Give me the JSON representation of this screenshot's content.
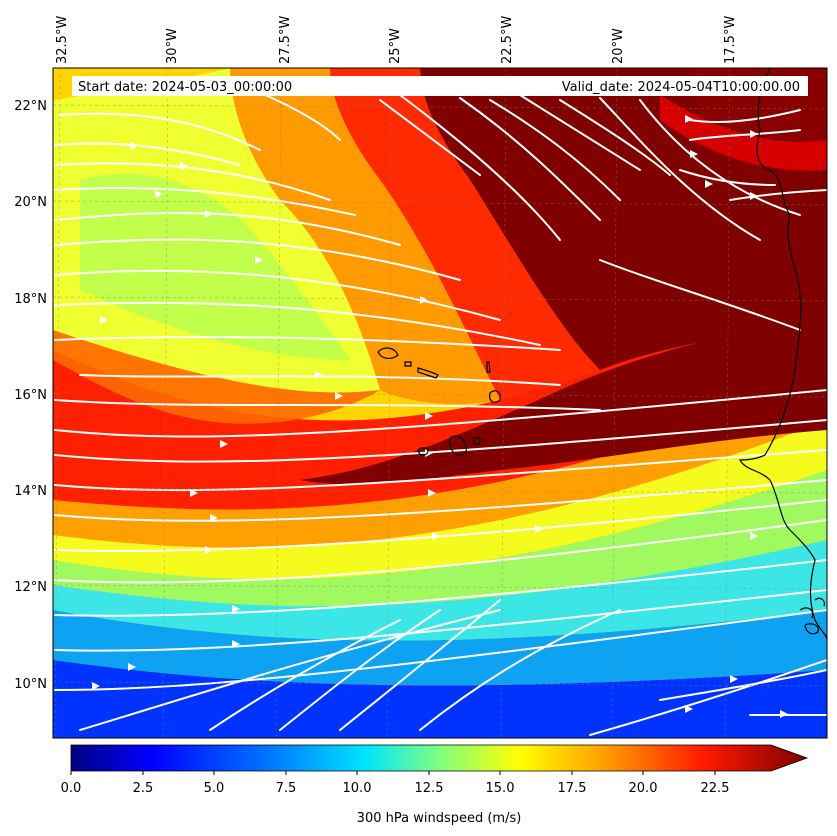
{
  "header": {
    "start_date": "Start date: 2024-05-03_00:00:00",
    "valid_date": "Valid_date: 2024-05-04T10:00:00.00"
  },
  "axes": {
    "lon_labels": [
      "32.5°W",
      "30°W",
      "27.5°W",
      "25°W",
      "22.5°W",
      "20°W",
      "17.5°W"
    ],
    "lat_labels": [
      "22°N",
      "20°N",
      "18°N",
      "16°N",
      "14°N",
      "12°N",
      "10°N"
    ]
  },
  "colorbar": {
    "label": "300 hPa windspeed (m/s)",
    "ticks": [
      "0.0",
      "2.5",
      "5.0",
      "7.5",
      "10.0",
      "12.5",
      "15.0",
      "17.5",
      "20.0",
      "22.5"
    ],
    "colors": [
      "#00007f",
      "#0000ff",
      "#007fff",
      "#00ffff",
      "#7fff7f",
      "#ffff00",
      "#ff7f00",
      "#ff0000",
      "#7f0000"
    ]
  },
  "map": {
    "field": "300 hPa windspeed",
    "units": "m/s",
    "streamline_color": "#ffffff",
    "coastline_color": "#000000"
  }
}
